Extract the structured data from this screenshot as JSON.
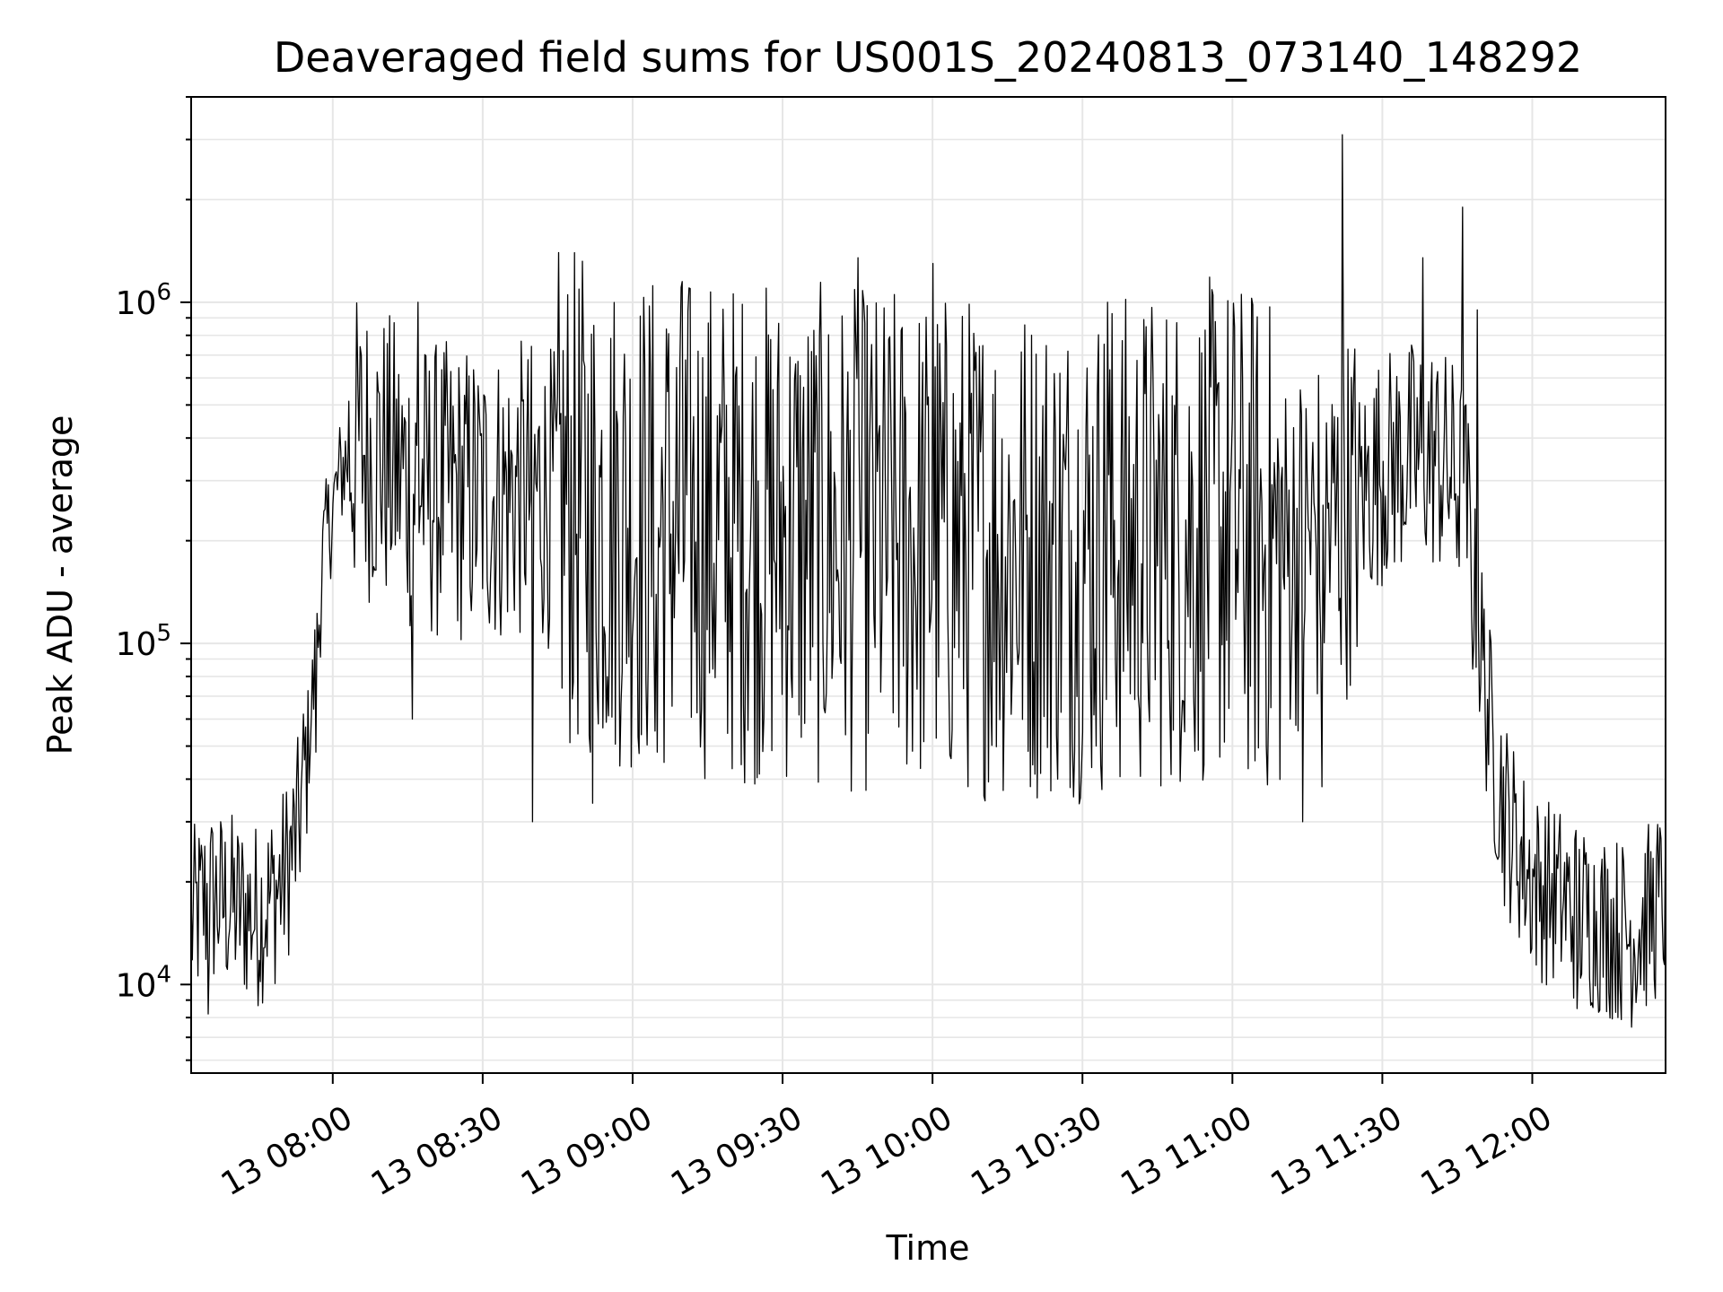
{
  "chart_data": {
    "type": "line",
    "title": "Deaveraged field sums for US001S_20240813_073140_148292",
    "xlabel": "Time",
    "ylabel": "Peak ADU - average",
    "yscale": "log",
    "ylim": [
      5500,
      4000000
    ],
    "xlim": [
      "2024-08-13T07:31:40",
      "2024-08-13T12:26:40"
    ],
    "grid": true,
    "line_color": "#000000",
    "grid_color": "#e6e6e6",
    "x_tick_labels": [
      "13 08:00",
      "13 08:30",
      "13 09:00",
      "13 09:30",
      "13 10:00",
      "13 10:30",
      "13 11:00",
      "13 11:30",
      "13 12:00"
    ],
    "x_ticks": [
      "2024-08-13T08:00",
      "2024-08-13T08:30",
      "2024-08-13T09:00",
      "2024-08-13T09:30",
      "2024-08-13T10:00",
      "2024-08-13T10:30",
      "2024-08-13T11:00",
      "2024-08-13T11:30",
      "2024-08-13T12:00"
    ],
    "y_ticks": [
      10000,
      100000,
      1000000
    ],
    "y_tick_labels": [
      {
        "base": "10",
        "exp": "4"
      },
      {
        "base": "10",
        "exp": "5"
      },
      {
        "base": "10",
        "exp": "6"
      }
    ],
    "series": [
      {
        "x": [
          "07:31:40",
          "07:35",
          "07:40",
          "07:45",
          "07:50",
          "07:53",
          "07:55",
          "07:57",
          "07:58",
          "08:00",
          "08:02",
          "08:05",
          "08:10",
          "08:15",
          "08:20",
          "08:30",
          "08:40",
          "08:50",
          "09:00",
          "09:15",
          "09:30",
          "09:45",
          "10:00",
          "10:15",
          "10:30",
          "10:45",
          "11:00",
          "11:10",
          "11:15",
          "11:20",
          "11:25",
          "11:30",
          "11:35",
          "11:40",
          "11:45",
          "11:47",
          "11:48",
          "11:50",
          "11:52",
          "11:55",
          "12:00",
          "12:05",
          "12:10",
          "12:15",
          "12:20",
          "12:26:40"
        ],
        "y": [
          15000,
          18000,
          17000,
          16000,
          20000,
          28000,
          50000,
          100000,
          180000,
          250000,
          330000,
          380000,
          350000,
          300000,
          280000,
          270000,
          280000,
          250000,
          230000,
          220000,
          210000,
          200000,
          200000,
          190000,
          190000,
          200000,
          220000,
          180000,
          200000,
          220000,
          260000,
          330000,
          350000,
          360000,
          300000,
          250000,
          150000,
          90000,
          50000,
          30000,
          20000,
          18000,
          16000,
          15000,
          14000,
          18000
        ],
        "spikes_high": [
          [
            "07:56:40",
            48000
          ],
          [
            "08:17",
            1000000
          ],
          [
            "09:10",
            1150000
          ],
          [
            "09:45",
            1350000
          ],
          [
            "10:00",
            1300000
          ],
          [
            "10:35",
            1000000
          ],
          [
            "11:22",
            3100000
          ],
          [
            "11:38",
            1350000
          ],
          [
            "11:46",
            1900000
          ],
          [
            "11:49",
            950000
          ]
        ],
        "spikes_low": [
          [
            "07:35",
            8200
          ],
          [
            "08:16",
            60000
          ],
          [
            "08:40",
            30000
          ],
          [
            "08:52",
            34000
          ],
          [
            "09:05",
            48000
          ],
          [
            "10:30",
            55000
          ],
          [
            "11:14",
            30000
          ],
          [
            "11:18",
            38000
          ],
          [
            "12:09",
            8500
          ]
        ]
      }
    ]
  }
}
